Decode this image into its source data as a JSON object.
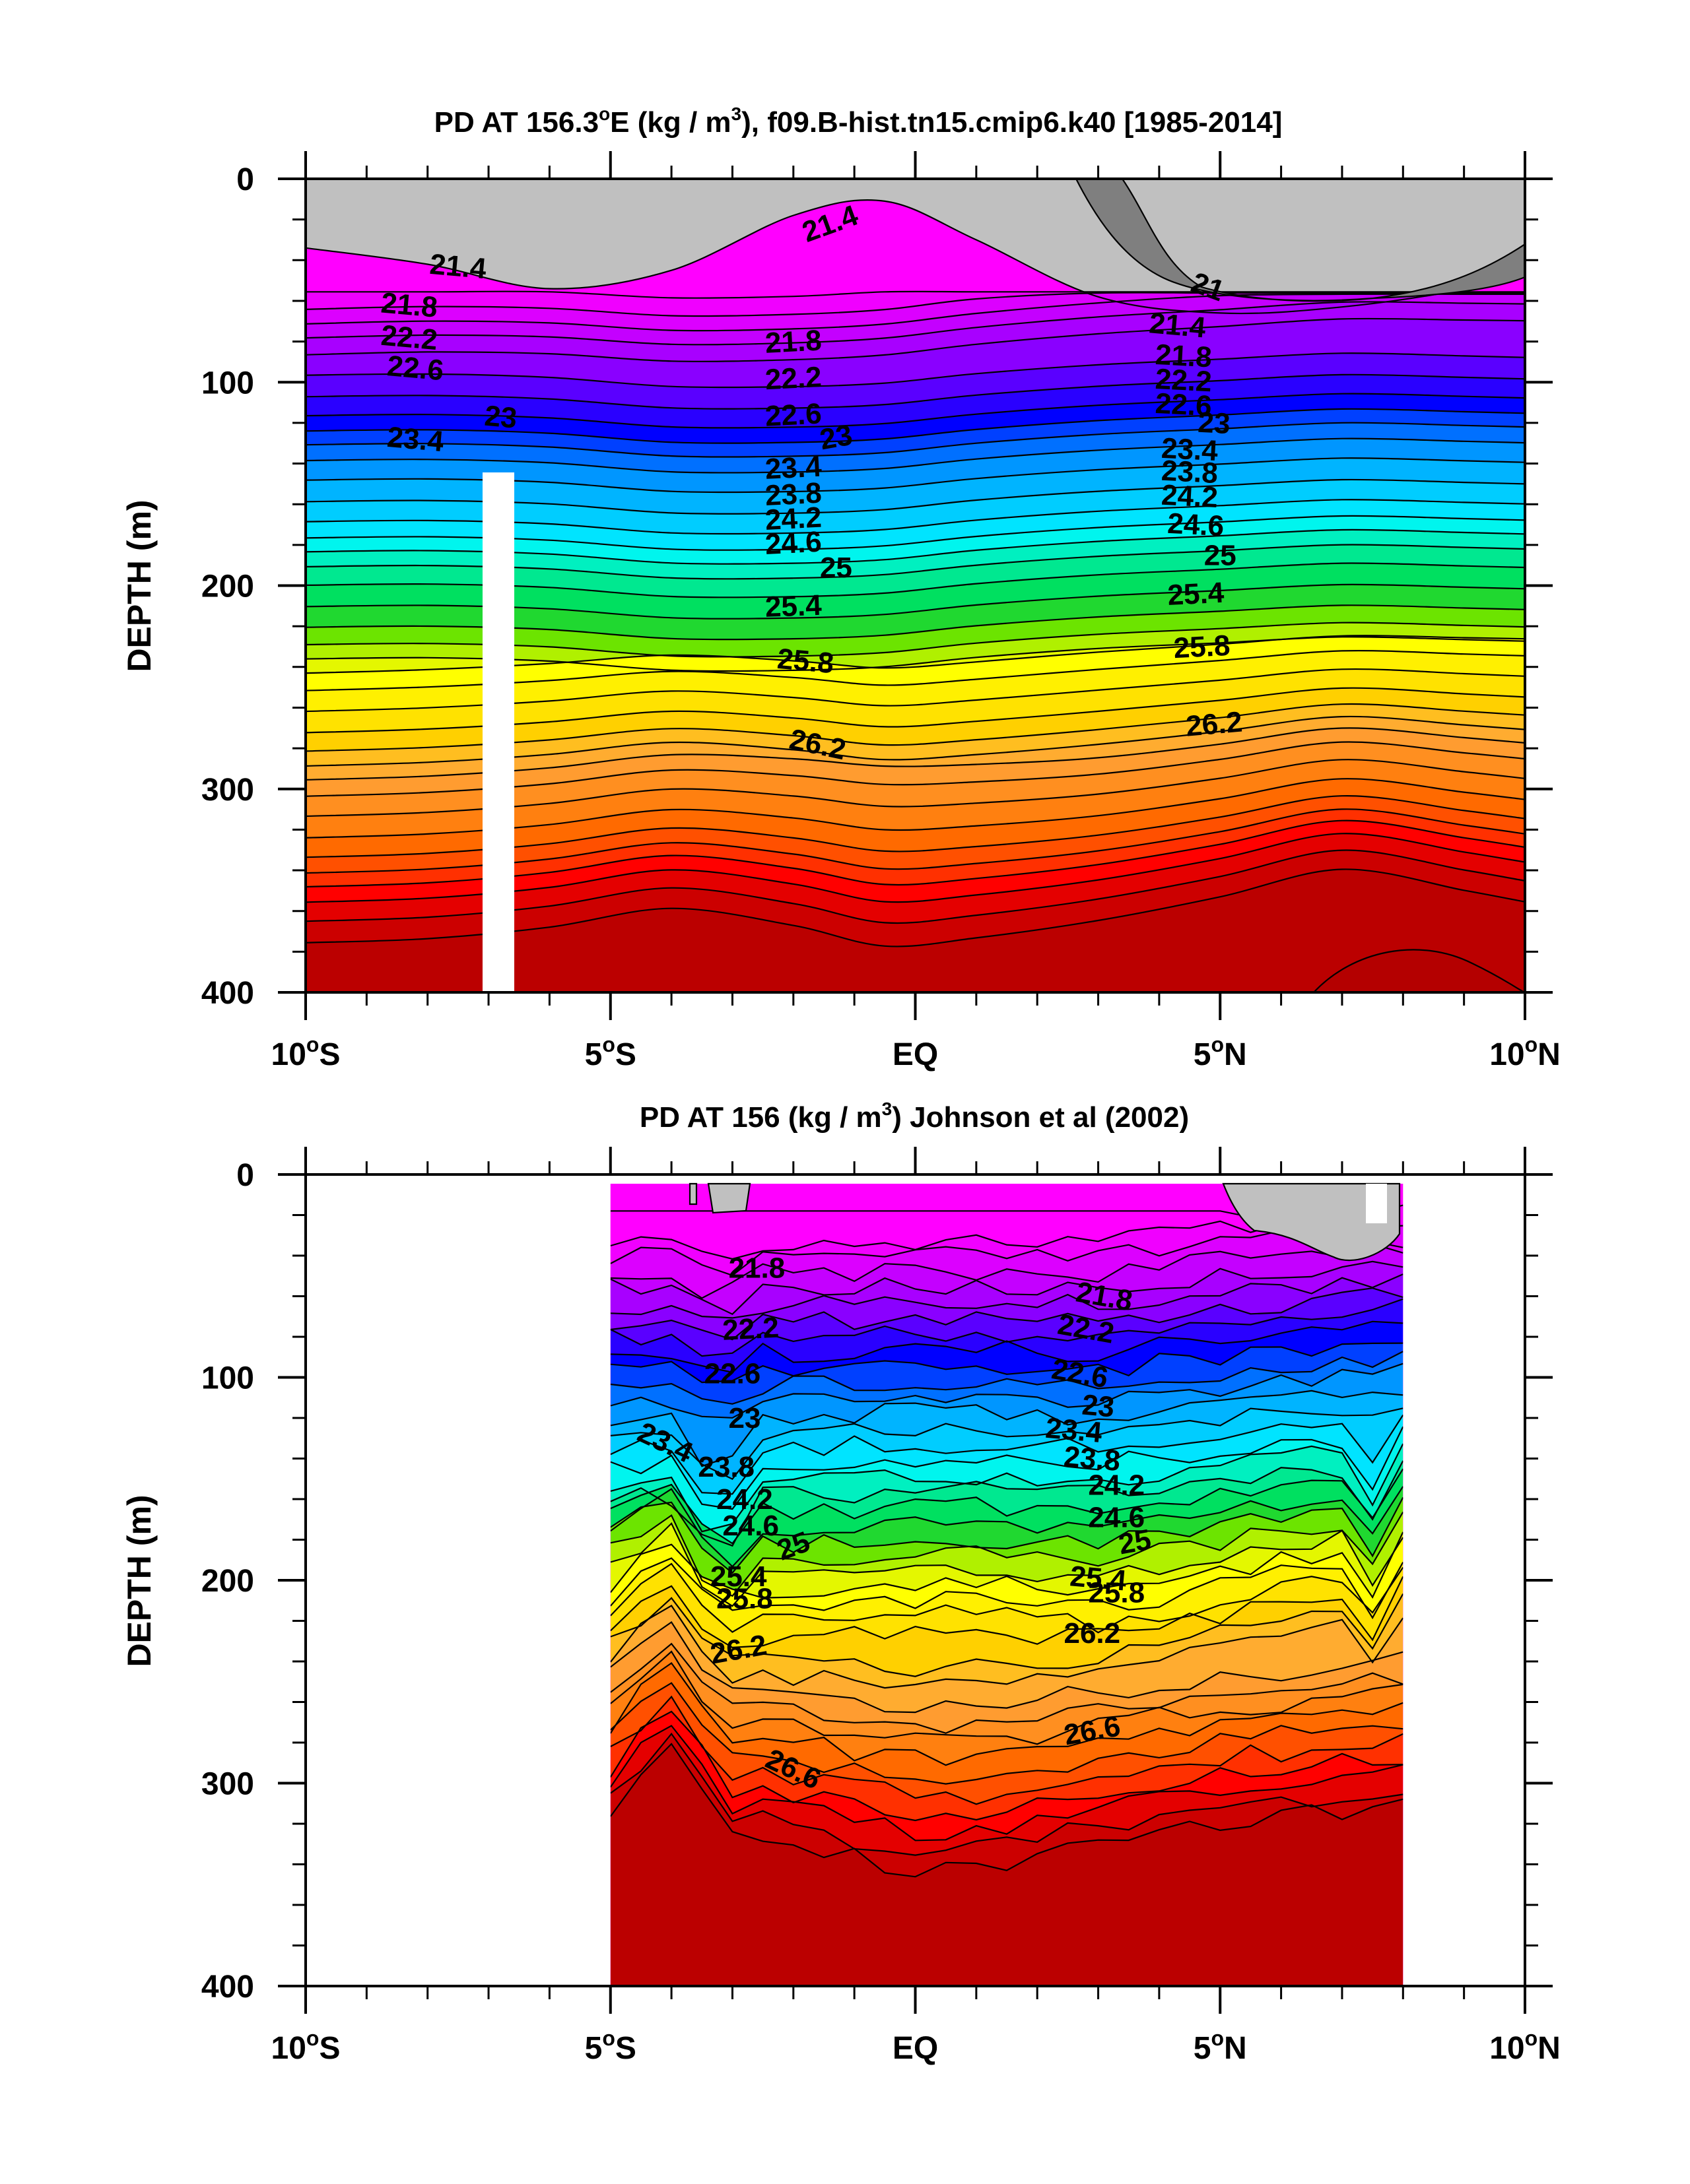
{
  "chart_data": [
    {
      "type": "contour",
      "title": "PD AT 156.3°E (kg / m³), f09.B-hist.tn15.cmip6.k40 [1985-2014]",
      "title_parts": {
        "pre": "PD AT 156.3",
        "deg": "o",
        "mid": "E (kg / m",
        "sup": "3",
        "post": "), f09.B-hist.tn15.cmip6.k40 [1985-2014]"
      },
      "ylabel": "DEPTH (m)",
      "xlim": [
        -10,
        10
      ],
      "ylim": [
        400,
        0
      ],
      "x_ticks": [
        {
          "v": -10,
          "label": "10°S"
        },
        {
          "v": -5,
          "label": "5°S"
        },
        {
          "v": 0,
          "label": "EQ"
        },
        {
          "v": 5,
          "label": "5°N"
        },
        {
          "v": 10,
          "label": "10°N"
        }
      ],
      "y_ticks": [
        0,
        100,
        200,
        300,
        400
      ],
      "contour_interval": 0.2,
      "contour_labels": [
        {
          "text": "21.4",
          "x": -7.5,
          "y": 43,
          "rot": 5
        },
        {
          "text": "21.8",
          "x": -8.3,
          "y": 62,
          "rot": 5
        },
        {
          "text": "22.2",
          "x": -8.3,
          "y": 78,
          "rot": 5
        },
        {
          "text": "22.6",
          "x": -8.2,
          "y": 93,
          "rot": 5
        },
        {
          "text": "23",
          "x": -6.8,
          "y": 117,
          "rot": 5
        },
        {
          "text": "23.4",
          "x": -8.2,
          "y": 128,
          "rot": 5
        },
        {
          "text": "21.4",
          "x": -1.4,
          "y": 22,
          "rot": -20
        },
        {
          "text": "21.8",
          "x": -2.0,
          "y": 80,
          "rot": -3
        },
        {
          "text": "22.2",
          "x": -2.0,
          "y": 98,
          "rot": -3
        },
        {
          "text": "22.6",
          "x": -2.0,
          "y": 116,
          "rot": -3
        },
        {
          "text": "23",
          "x": -1.3,
          "y": 127,
          "rot": -10
        },
        {
          "text": "23.4",
          "x": -2.0,
          "y": 142,
          "rot": -3
        },
        {
          "text": "23.8",
          "x": -2.0,
          "y": 155,
          "rot": -3
        },
        {
          "text": "24.2",
          "x": -2.0,
          "y": 167,
          "rot": -3
        },
        {
          "text": "24.6",
          "x": -2.0,
          "y": 179,
          "rot": -3
        },
        {
          "text": "25",
          "x": -1.3,
          "y": 191,
          "rot": 0
        },
        {
          "text": "25.4",
          "x": -2.0,
          "y": 210,
          "rot": -2
        },
        {
          "text": "25.8",
          "x": -1.8,
          "y": 237,
          "rot": 5
        },
        {
          "text": "26.2",
          "x": -1.6,
          "y": 278,
          "rot": 12
        },
        {
          "text": "21",
          "x": 4.8,
          "y": 53,
          "rot": 20
        },
        {
          "text": "21.4",
          "x": 4.3,
          "y": 72,
          "rot": 5
        },
        {
          "text": "21.8",
          "x": 4.4,
          "y": 87,
          "rot": 3
        },
        {
          "text": "22.2",
          "x": 4.4,
          "y": 99,
          "rot": 3
        },
        {
          "text": "22.6",
          "x": 4.4,
          "y": 111,
          "rot": 3
        },
        {
          "text": "23",
          "x": 4.9,
          "y": 120,
          "rot": 3
        },
        {
          "text": "23.4",
          "x": 4.5,
          "y": 133,
          "rot": 3
        },
        {
          "text": "23.8",
          "x": 4.5,
          "y": 144,
          "rot": 3
        },
        {
          "text": "24.2",
          "x": 4.5,
          "y": 156,
          "rot": 3
        },
        {
          "text": "24.6",
          "x": 4.6,
          "y": 170,
          "rot": 3
        },
        {
          "text": "25",
          "x": 5.0,
          "y": 185,
          "rot": 0
        },
        {
          "text": "25.4",
          "x": 4.6,
          "y": 204,
          "rot": -3
        },
        {
          "text": "25.8",
          "x": 4.7,
          "y": 230,
          "rot": -3
        },
        {
          "text": "26.2",
          "x": 4.9,
          "y": 268,
          "rot": -5
        }
      ]
    },
    {
      "type": "contour",
      "title": "PD AT 156 (kg / m³) Johnson et al (2002)",
      "title_parts": {
        "pre": "PD AT 156 (kg / m",
        "sup": "3",
        "post": ") Johnson et al (2002)"
      },
      "ylabel": "DEPTH (m)",
      "xlim": [
        -10,
        10
      ],
      "ylim": [
        400,
        0
      ],
      "data_x_range": [
        -5,
        8
      ],
      "x_ticks": [
        {
          "v": -10,
          "label": "10°S"
        },
        {
          "v": -5,
          "label": "5°S"
        },
        {
          "v": 0,
          "label": "EQ"
        },
        {
          "v": 5,
          "label": "5°N"
        },
        {
          "v": 10,
          "label": "10°N"
        }
      ],
      "y_ticks": [
        0,
        100,
        200,
        300,
        400
      ],
      "contour_interval": 0.2,
      "contour_labels": [
        {
          "text": "21.8",
          "x": -2.6,
          "y": 46,
          "rot": 0
        },
        {
          "text": "22.2",
          "x": -2.7,
          "y": 76,
          "rot": -3
        },
        {
          "text": "22.6",
          "x": -3.0,
          "y": 98,
          "rot": 0
        },
        {
          "text": "23",
          "x": -2.8,
          "y": 120,
          "rot": 0
        },
        {
          "text": "23.4",
          "x": -4.1,
          "y": 132,
          "rot": 25
        },
        {
          "text": "23.8",
          "x": -3.1,
          "y": 144,
          "rot": 0
        },
        {
          "text": "24.2",
          "x": -2.8,
          "y": 160,
          "rot": 0
        },
        {
          "text": "24.6",
          "x": -2.7,
          "y": 173,
          "rot": 0
        },
        {
          "text": "25",
          "x": -2.0,
          "y": 183,
          "rot": -20
        },
        {
          "text": "25.4",
          "x": -2.9,
          "y": 198,
          "rot": 0
        },
        {
          "text": "25.8",
          "x": -2.8,
          "y": 209,
          "rot": 0
        },
        {
          "text": "26.2",
          "x": -2.9,
          "y": 234,
          "rot": -10
        },
        {
          "text": "26.6",
          "x": -2.0,
          "y": 293,
          "rot": 25
        },
        {
          "text": "21.8",
          "x": 3.1,
          "y": 60,
          "rot": 10
        },
        {
          "text": "22.2",
          "x": 2.8,
          "y": 76,
          "rot": 10
        },
        {
          "text": "22.6",
          "x": 2.7,
          "y": 98,
          "rot": 10
        },
        {
          "text": "23",
          "x": 3.0,
          "y": 114,
          "rot": 5
        },
        {
          "text": "23.4",
          "x": 2.6,
          "y": 126,
          "rot": 5
        },
        {
          "text": "23.8",
          "x": 2.9,
          "y": 140,
          "rot": 5
        },
        {
          "text": "24.2",
          "x": 3.3,
          "y": 153,
          "rot": 0
        },
        {
          "text": "24.6",
          "x": 3.3,
          "y": 169,
          "rot": 0
        },
        {
          "text": "25",
          "x": 3.6,
          "y": 181,
          "rot": -10
        },
        {
          "text": "25.4",
          "x": 3.0,
          "y": 199,
          "rot": 5
        },
        {
          "text": "25.8",
          "x": 3.3,
          "y": 206,
          "rot": 0
        },
        {
          "text": "26.2",
          "x": 2.9,
          "y": 226,
          "rot": 0
        },
        {
          "text": "26.6",
          "x": 2.9,
          "y": 274,
          "rot": -10
        }
      ]
    }
  ]
}
